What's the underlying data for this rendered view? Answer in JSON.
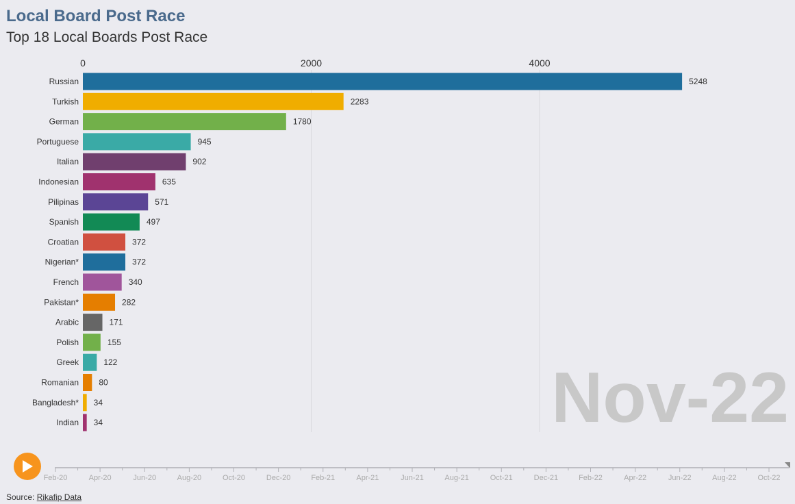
{
  "header": {
    "title": "Local Board Post Race",
    "subtitle": "Top 18 Local Boards Post Race"
  },
  "source": {
    "prefix": "Source: ",
    "link_label": "Rikafip Data"
  },
  "controls": {
    "play_icon": "play-icon",
    "play_color": "#f7941d"
  },
  "chart_data": {
    "type": "bar",
    "orientation": "horizontal",
    "title": "Local Board Post Race",
    "subtitle": "Top 18 Local Boards Post Race",
    "current_period": "Nov-22",
    "xlim": [
      0,
      6000
    ],
    "x_ticks": [
      0,
      2000,
      4000
    ],
    "grid": true,
    "categories": [
      "Russian",
      "Turkish",
      "German",
      "Portuguese",
      "Italian",
      "Indonesian",
      "Pilipinas",
      "Spanish",
      "Croatian",
      "Nigerian*",
      "French",
      "Pakistan*",
      "Arabic",
      "Polish",
      "Greek",
      "Romanian",
      "Bangladesh*",
      "Indian"
    ],
    "values": [
      5248,
      2283,
      1780,
      945,
      902,
      635,
      571,
      497,
      372,
      372,
      340,
      282,
      171,
      155,
      122,
      80,
      34,
      34
    ],
    "colors": [
      "#1f6e9c",
      "#f0ad00",
      "#72b04a",
      "#3aaaa6",
      "#703f6e",
      "#a0326e",
      "#5b4595",
      "#128a55",
      "#d05040",
      "#1f6e9c",
      "#a0559b",
      "#e57e00",
      "#666666",
      "#72b04a",
      "#3aaaa6",
      "#e57e00",
      "#f0ad00",
      "#a0326e"
    ],
    "timeline": {
      "labels": [
        "Feb-20",
        "Apr-20",
        "Jun-20",
        "Aug-20",
        "Oct-20",
        "Dec-20",
        "Feb-21",
        "Apr-21",
        "Jun-21",
        "Aug-21",
        "Oct-21",
        "Dec-21",
        "Feb-22",
        "Apr-22",
        "Jun-22",
        "Aug-22",
        "Oct-22"
      ],
      "current": "Nov-22"
    }
  }
}
